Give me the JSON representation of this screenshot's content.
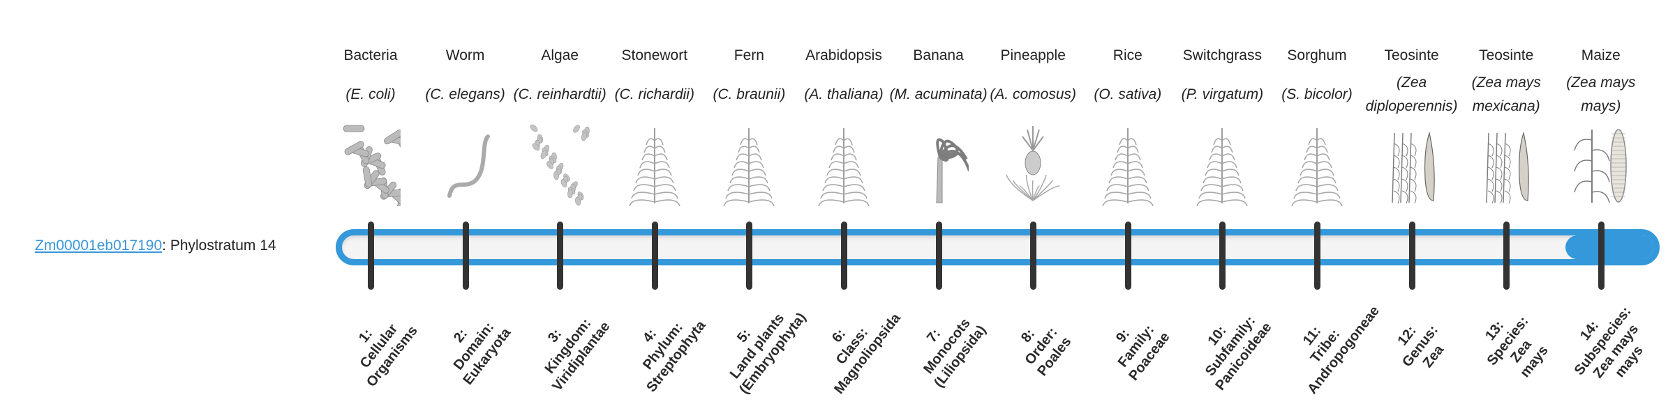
{
  "gene": {
    "id": "Zm00001eb017190",
    "suffix": ": Phylostratum 14"
  },
  "colors": {
    "accent": "#3498db",
    "tick": "#333333",
    "link": "#3a97d9"
  },
  "progress": {
    "current_stratum": 14,
    "total_strata": 14
  },
  "organisms": [
    {
      "common": "Bacteria",
      "sci": "(E. coli)",
      "icon": "bacteria-illustration"
    },
    {
      "common": "Worm",
      "sci": "(C. elegans)",
      "icon": "worm-illustration"
    },
    {
      "common": "Algae",
      "sci": "(C. reinhardtii)",
      "icon": "algae-illustration"
    },
    {
      "common": "Stonewort",
      "sci": "(C. richardii)",
      "icon": "stonewort-illustration"
    },
    {
      "common": "Fern",
      "sci": "(C. braunii)",
      "icon": "fern-illustration"
    },
    {
      "common": "Arabidopsis",
      "sci": "(A. thaliana)",
      "icon": "arabidopsis-illustration"
    },
    {
      "common": "Banana",
      "sci": "(M. acuminata)",
      "icon": "banana-illustration"
    },
    {
      "common": "Pineapple",
      "sci": "(A. comosus)",
      "icon": "pineapple-illustration"
    },
    {
      "common": "Rice",
      "sci": "(O. sativa)",
      "icon": "rice-illustration"
    },
    {
      "common": "Switchgrass",
      "sci": "(P. virgatum)",
      "icon": "switchgrass-illustration"
    },
    {
      "common": "Sorghum",
      "sci": "(S. bicolor)",
      "icon": "sorghum-illustration"
    },
    {
      "common": "Teosinte",
      "sci": "(Zea diploperennis)",
      "icon": "teosinte-illustration"
    },
    {
      "common": "Teosinte",
      "sci": "(Zea mays mexicana)",
      "icon": "teosinte-illustration"
    },
    {
      "common": "Maize",
      "sci": "(Zea mays mays)",
      "icon": "maize-illustration"
    }
  ],
  "strata": [
    {
      "lines": [
        "1:",
        "Cellular",
        "Organisms"
      ]
    },
    {
      "lines": [
        "2:",
        "Domain:",
        "Eukaryota"
      ]
    },
    {
      "lines": [
        "3:",
        "Kingdom:",
        "Viridiplantae"
      ]
    },
    {
      "lines": [
        "4:",
        "Phylum:",
        "Streptophyta"
      ]
    },
    {
      "lines": [
        "5:",
        "Land plants",
        "(Embryophyta)"
      ]
    },
    {
      "lines": [
        "6:",
        "Class:",
        "Magnoliopsida"
      ]
    },
    {
      "lines": [
        "7:",
        "Monocots",
        "(Liliopsida)"
      ]
    },
    {
      "lines": [
        "8:",
        "Order:",
        "Poales"
      ]
    },
    {
      "lines": [
        "9:",
        "Family:",
        "Poaceae"
      ]
    },
    {
      "lines": [
        "10:",
        "Subfamily:",
        "Panicoideae"
      ]
    },
    {
      "lines": [
        "11:",
        "Tribe:",
        "Andropogoneae"
      ]
    },
    {
      "lines": [
        "12:",
        "Genus:",
        "Zea"
      ]
    },
    {
      "lines": [
        "13:",
        "Species:",
        "Zea",
        "mays"
      ]
    },
    {
      "lines": [
        "14:",
        "Subspecies:",
        "Zea mays",
        "mays"
      ]
    }
  ]
}
